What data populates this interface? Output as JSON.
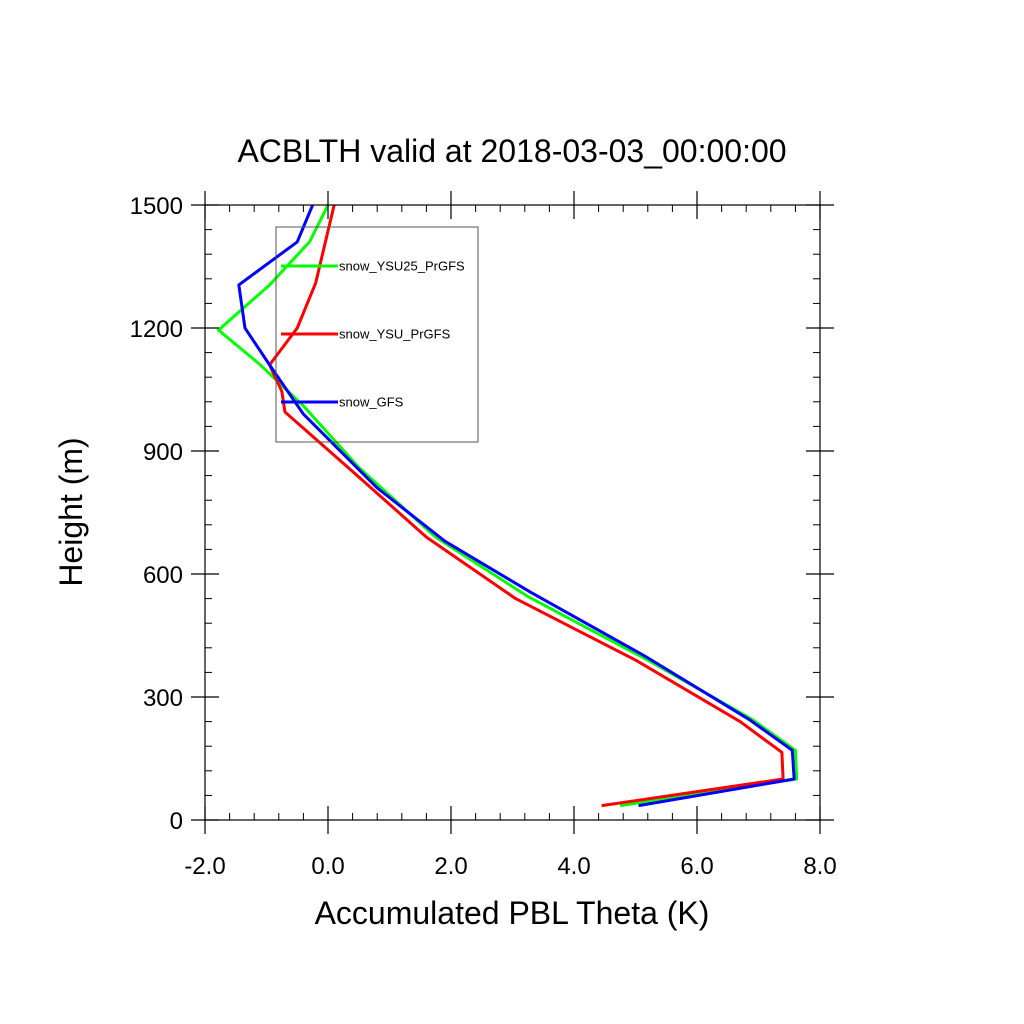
{
  "chart_data": {
    "type": "line",
    "title": "ACBLTH valid at 2018-03-03_00:00:00",
    "xlabel": "Accumulated PBL Theta (K)",
    "ylabel": "Height (m)",
    "xlim": [
      -2.0,
      8.0
    ],
    "ylim": [
      0,
      1500
    ],
    "x_ticks": [
      "-2.0",
      "0.0",
      "2.0",
      "4.0",
      "6.0",
      "8.0"
    ],
    "x_tick_values": [
      -2,
      0,
      2,
      4,
      6,
      8
    ],
    "y_ticks": [
      "0",
      "300",
      "600",
      "900",
      "1200",
      "1500"
    ],
    "y_tick_values": [
      0,
      300,
      600,
      900,
      1200,
      1500
    ],
    "x_minor_step": 0.4,
    "y_minor_step": 60,
    "grid": false,
    "legend_position": "top-left",
    "series": [
      {
        "name": "snow_YSU25_PrGFS",
        "color": "#00ff00",
        "points": [
          [
            4.75,
            35
          ],
          [
            7.62,
            100
          ],
          [
            7.6,
            170
          ],
          [
            6.9,
            245
          ],
          [
            5.2,
            390
          ],
          [
            3.25,
            545
          ],
          [
            1.75,
            690
          ],
          [
            0.5,
            860
          ],
          [
            -0.4,
            1010
          ],
          [
            -1.1,
            1110
          ],
          [
            -1.78,
            1195
          ],
          [
            -0.95,
            1305
          ],
          [
            -0.3,
            1410
          ],
          [
            0.0,
            1500
          ]
        ]
      },
      {
        "name": "snow_YSU_PrGFS",
        "color": "#ff0000",
        "points": [
          [
            4.45,
            35
          ],
          [
            7.4,
            100
          ],
          [
            7.38,
            165
          ],
          [
            6.7,
            240
          ],
          [
            5.0,
            390
          ],
          [
            3.05,
            540
          ],
          [
            1.6,
            690
          ],
          [
            0.4,
            850
          ],
          [
            -0.7,
            995
          ],
          [
            -0.75,
            1045
          ],
          [
            -0.95,
            1110
          ],
          [
            -0.5,
            1200
          ],
          [
            -0.2,
            1310
          ],
          [
            0.1,
            1500
          ]
        ]
      },
      {
        "name": "snow_GFS",
        "color": "#0000ff",
        "points": [
          [
            5.05,
            35
          ],
          [
            7.58,
            100
          ],
          [
            7.55,
            170
          ],
          [
            6.85,
            245
          ],
          [
            5.15,
            400
          ],
          [
            3.3,
            555
          ],
          [
            1.9,
            680
          ],
          [
            0.8,
            810
          ],
          [
            -0.4,
            990
          ],
          [
            -0.95,
            1110
          ],
          [
            -1.35,
            1200
          ],
          [
            -1.45,
            1305
          ],
          [
            -0.5,
            1410
          ],
          [
            -0.25,
            1500
          ]
        ]
      }
    ],
    "legend": [
      {
        "name": "snow_YSU25_PrGFS",
        "color": "#00ff00"
      },
      {
        "name": "snow_YSU_PrGFS",
        "color": "#ff0000"
      },
      {
        "name": "snow_GFS",
        "color": "#0000ff"
      }
    ]
  }
}
